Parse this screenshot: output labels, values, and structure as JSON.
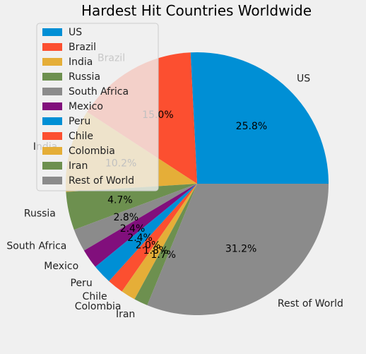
{
  "chart_data": {
    "type": "pie",
    "title": "Hardest Hit Countries Worldwide",
    "categories": [
      "US",
      "Brazil",
      "India",
      "Russia",
      "South Africa",
      "Mexico",
      "Peru",
      "Chile",
      "Colombia",
      "Iran",
      "Rest of World"
    ],
    "values": [
      25.8,
      15.0,
      10.2,
      4.7,
      2.8,
      2.4,
      2.4,
      2.0,
      1.8,
      1.7,
      31.2
    ],
    "value_labels": [
      "25.8%",
      "15.0%",
      "10.2%",
      "4.7%",
      "2.8%",
      "2.4%",
      "2.4%",
      "2.0%",
      "1.8%",
      "1.7%",
      "31.2%"
    ],
    "colors": [
      "#008fd5",
      "#fc4f30",
      "#e5ae38",
      "#6d904f",
      "#8b8b8b",
      "#810f7c",
      "#008fd5",
      "#fc4f30",
      "#e5ae38",
      "#6d904f",
      "#8b8b8b"
    ],
    "start_angle_deg": 0,
    "direction": "counterclockwise",
    "legend_position": "upper-left"
  }
}
